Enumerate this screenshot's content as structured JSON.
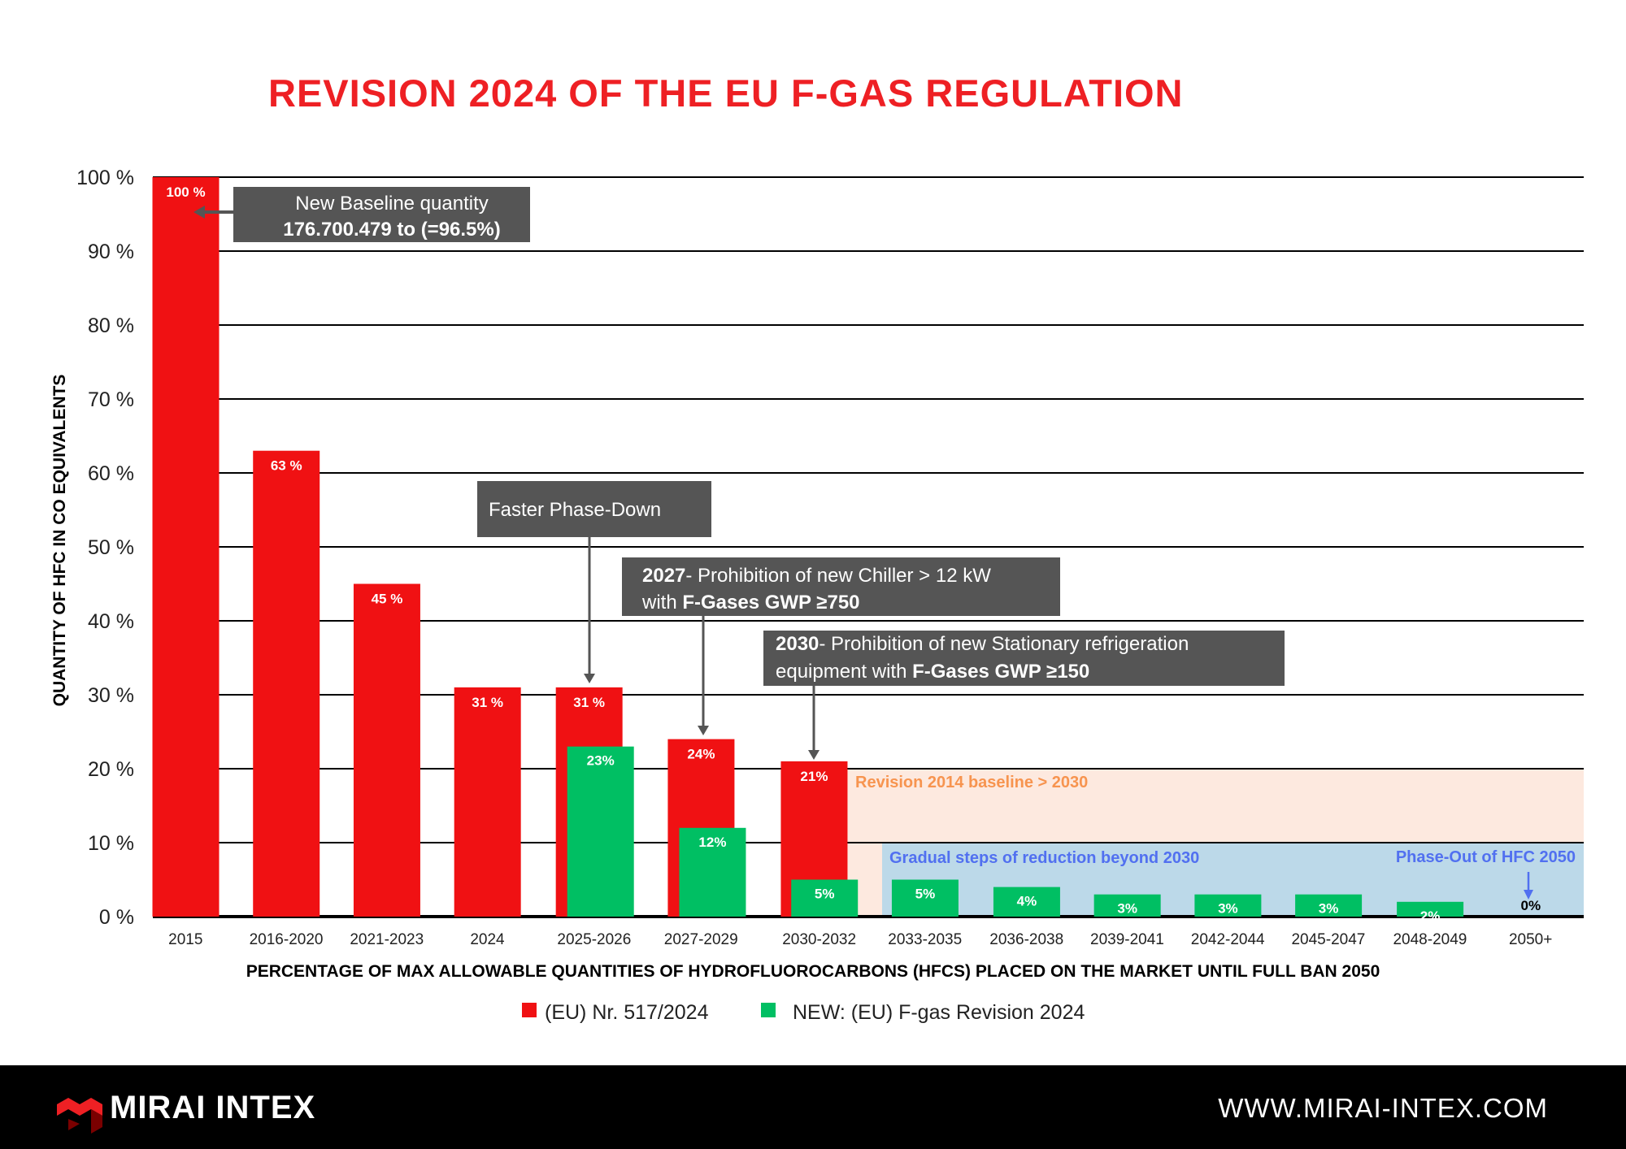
{
  "chart_data": {
    "type": "bar",
    "title": "REVISION 2024 OF THE EU F-GAS REGULATION",
    "ylabel": "QUANTITY OF HFC IN CO   EQUIVALENTS",
    "xlabel": "PERCENTAGE OF MAX ALLOWABLE QUANTITIES OF HYDROFLUOROCARBONS (HFCS) PLACED ON THE MARKET UNTIL FULL BAN 2050",
    "ylim": [
      0,
      100
    ],
    "yticks": [
      "0 %",
      "10 %",
      "20 %",
      "30 %",
      "40 %",
      "50 %",
      "60 %",
      "70 %",
      "80 %",
      "90 %",
      "100 %"
    ],
    "grid": true,
    "legend_position": "bottom",
    "categories": [
      "2015",
      "2016-2020",
      "2021-2023",
      "2024",
      "2025-2026",
      "2027-2029",
      "2030-2032",
      "2033-2035",
      "2036-2038",
      "2039-2041",
      "2042-2044",
      "2045-2047",
      "2048-2049",
      "2050+"
    ],
    "series": [
      {
        "name": "(EU) Nr. 517/2024",
        "color": "#f01113",
        "values": [
          100,
          63,
          45,
          31,
          31,
          24,
          21,
          null,
          null,
          null,
          null,
          null,
          null,
          null
        ],
        "labels": [
          "100 %",
          "63 %",
          "45 %",
          "31 %",
          "31 %",
          "24%",
          "21%",
          "",
          "",
          "",
          "",
          "",
          "",
          ""
        ]
      },
      {
        "name": "NEW: (EU) F-gas Revision 2024",
        "color": "#00bf63",
        "values": [
          null,
          null,
          null,
          null,
          23,
          12,
          5,
          5,
          4,
          3,
          3,
          3,
          2,
          0
        ],
        "labels": [
          "",
          "",
          "",
          "",
          "23%",
          "12%",
          "5%",
          "5%",
          "4%",
          "3%",
          "3%",
          "3%",
          "2%",
          "0%"
        ]
      }
    ],
    "regions": [
      {
        "label": "Revision 2014 baseline > 2030",
        "from": 0,
        "to": 20,
        "color": "#fde9df",
        "text_color": "#f7944f"
      },
      {
        "label": "Gradual steps of reduction beyond 2030",
        "from": 0,
        "to": 10,
        "color": "#bcd9e9",
        "text_color": "#5170f0"
      }
    ],
    "annotations": {
      "baseline": {
        "line1": "New Baseline quantity",
        "line2": "176.700.479 to (=96.5%)"
      },
      "faster": {
        "text": "Faster Phase-Down"
      },
      "chiller": {
        "bold": "2027",
        "rest": "- Prohibition of new Chiller > 12 kW",
        "line2a": "with ",
        "line2b": "F-Gases GWP ≥750"
      },
      "stationary": {
        "bold": "2030",
        "rest": "- Prohibition of new Stationary refrigeration",
        "line2a": "equipment with ",
        "line2b": "F-Gases GWP ≥150"
      },
      "phaseout": {
        "text": "Phase-Out of HFC 2050"
      }
    },
    "annotation_color": "#555555"
  },
  "footer": {
    "brand": "MIRAI INTEX",
    "url": "WWW.MIRAI-INTEX.COM"
  }
}
